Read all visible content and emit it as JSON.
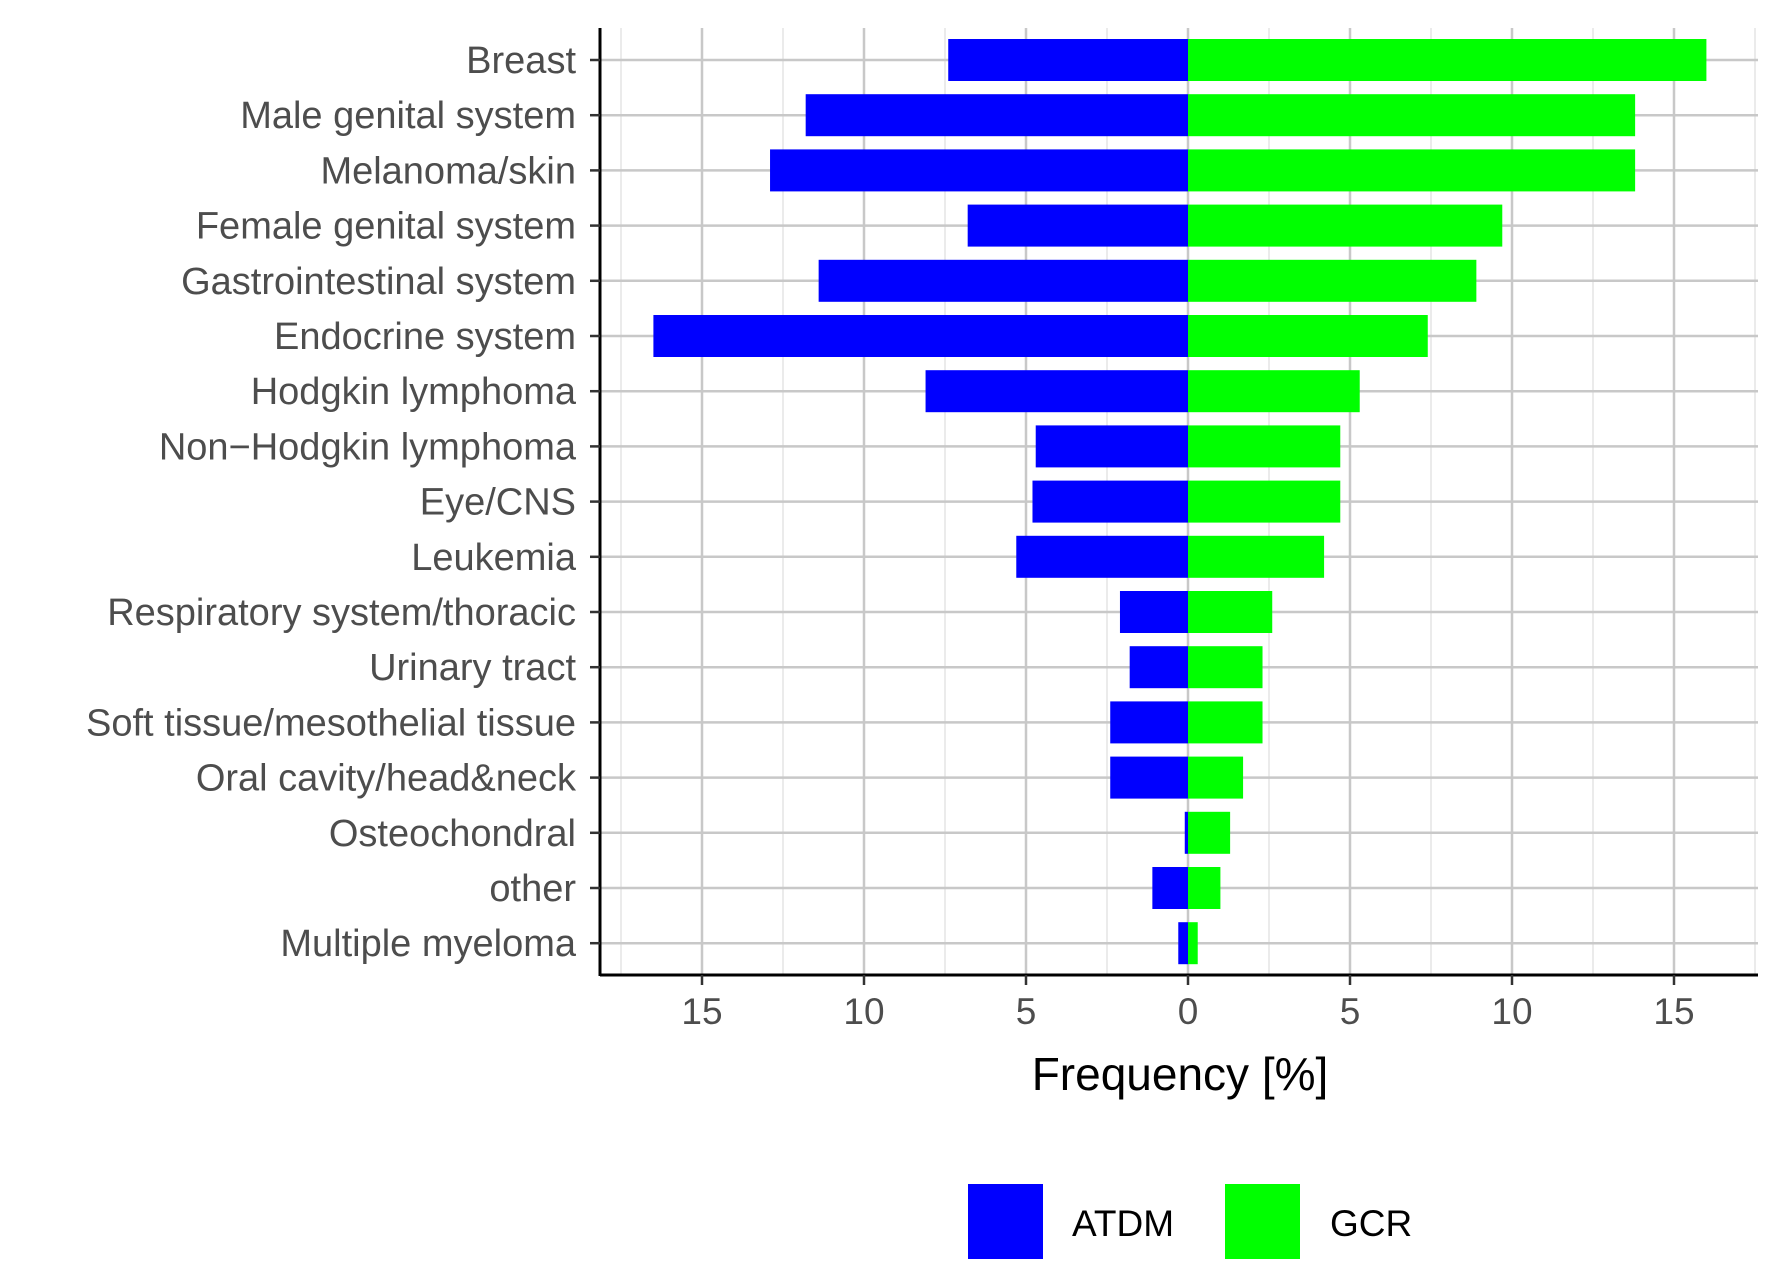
{
  "chart_data": {
    "type": "bar",
    "orientation": "horizontal-diverging",
    "categories": [
      "Breast",
      "Male genital system",
      "Melanoma/skin",
      "Female genital system",
      "Gastrointestinal system",
      "Endocrine system",
      "Hodgkin lymphoma",
      "Non−Hodgkin lymphoma",
      "Eye/CNS",
      "Leukemia",
      "Respiratory system/thoracic",
      "Urinary tract",
      "Soft tissue/mesothelial tissue",
      "Oral cavity/head&neck",
      "Osteochondral",
      "other",
      "Multiple myeloma"
    ],
    "series": [
      {
        "name": "ATDM",
        "color": "#0000ff",
        "direction": "left",
        "values": [
          7.4,
          11.8,
          12.9,
          6.8,
          11.4,
          16.5,
          8.1,
          4.7,
          4.8,
          5.3,
          2.1,
          1.8,
          2.4,
          2.4,
          0.1,
          1.1,
          0.3
        ]
      },
      {
        "name": "GCR",
        "color": "#00ff00",
        "direction": "right",
        "values": [
          16.0,
          13.8,
          13.8,
          9.7,
          8.9,
          7.4,
          5.3,
          4.7,
          4.7,
          4.2,
          2.6,
          2.3,
          2.3,
          1.7,
          1.3,
          1.0,
          0.3
        ]
      }
    ],
    "title": "",
    "xlabel": "Frequency [%]",
    "ylabel": "",
    "xlim": [
      -18,
      18
    ],
    "xticks": [
      -15,
      -10,
      -5,
      0,
      5,
      10,
      15
    ],
    "xtick_labels": [
      "15",
      "10",
      "5",
      "0",
      "5",
      "10",
      "15"
    ],
    "grid": true,
    "legend": {
      "position": "bottom",
      "entries": [
        "ATDM",
        "GCR"
      ]
    }
  }
}
